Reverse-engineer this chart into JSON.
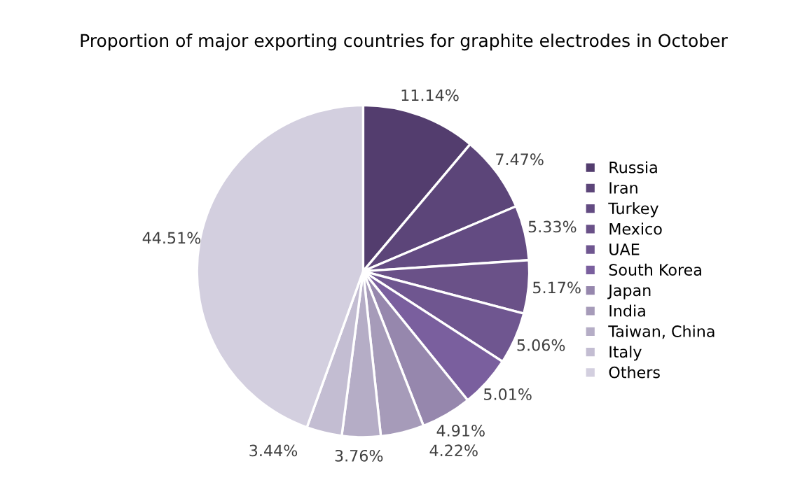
{
  "chart_data": {
    "type": "pie",
    "title": "Proportion of major exporting countries for graphite electrodes in October",
    "categories": [
      "Russia",
      "Iran",
      "Turkey",
      "Mexico",
      "UAE",
      "South Korea",
      "Japan",
      "India",
      "Taiwan, China",
      "Italy",
      "Others"
    ],
    "values": [
      11.14,
      7.47,
      5.33,
      5.17,
      5.06,
      5.01,
      4.91,
      4.22,
      3.76,
      3.44,
      44.51
    ],
    "colors": [
      "#533d6e",
      "#5c4579",
      "#634b82",
      "#6a5188",
      "#6f5690",
      "#7a5f9e",
      "#9687ad",
      "#a69bb9",
      "#b5adc6",
      "#c3bdd2",
      "#d3cfdf"
    ],
    "value_labels": [
      "11.14%",
      "7.47%",
      "5.33%",
      "5.17%",
      "5.06%",
      "5.01%",
      "4.91%",
      "4.22%",
      "3.76%",
      "3.44%",
      "44.51%"
    ],
    "legend": "right"
  }
}
